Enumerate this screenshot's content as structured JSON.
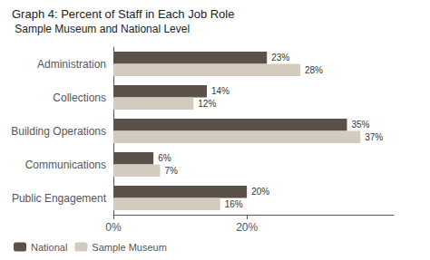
{
  "chart_data": {
    "type": "bar",
    "orientation": "horizontal",
    "title": "Graph 4: Percent of Staff in Each Job Role",
    "subtitle": " Sample Museum and National Level",
    "categories": [
      "Administration",
      "Collections",
      "Building Operations",
      "Communications",
      "Public Engagement"
    ],
    "series": [
      {
        "name": "National",
        "color": "#5c5148",
        "values": [
          23,
          14,
          35,
          6,
          20
        ],
        "value_labels": [
          "23%",
          "14%",
          "35%",
          "6%",
          "20%"
        ]
      },
      {
        "name": "Sample Museum",
        "color": "#d4cbbf",
        "values": [
          28,
          12,
          37,
          7,
          16
        ],
        "value_labels": [
          "28%",
          "12%",
          "37%",
          "7%",
          "16%"
        ]
      }
    ],
    "xlim": [
      0,
      42
    ],
    "xticks": [
      {
        "value": 0,
        "label": "0%"
      },
      {
        "value": 20,
        "label": "20%"
      }
    ],
    "grid": false,
    "legend": "lower left",
    "data_labels": true
  }
}
